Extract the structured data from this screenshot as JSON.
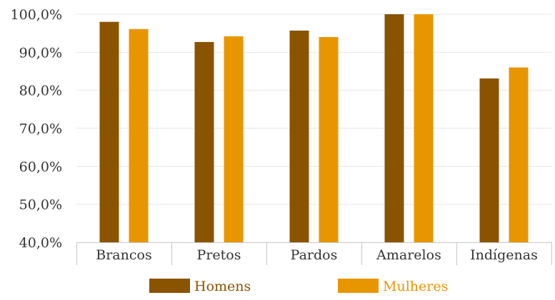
{
  "chart_data": {
    "type": "bar",
    "title": "",
    "xlabel": "",
    "ylabel": "",
    "categories": [
      "Brancos",
      "Pretos",
      "Pardos",
      "Amarelos",
      "Indígenas"
    ],
    "series": [
      {
        "name": "Homens",
        "color": "#8a5300",
        "values": [
          98.0,
          92.7,
          95.7,
          100.0,
          83.1
        ]
      },
      {
        "name": "Mulheres",
        "color": "#e89600",
        "values": [
          96.1,
          94.2,
          94.0,
          100.0,
          86.0
        ]
      }
    ],
    "ylim": [
      40,
      100
    ],
    "yticks": [
      "40,0%",
      "50,0%",
      "60,0%",
      "70,0%",
      "80,0%",
      "90,0%",
      "100,0%"
    ],
    "yticks_values": [
      40,
      50,
      60,
      70,
      80,
      90,
      100
    ],
    "grid": true,
    "legend_position": "bottom"
  }
}
